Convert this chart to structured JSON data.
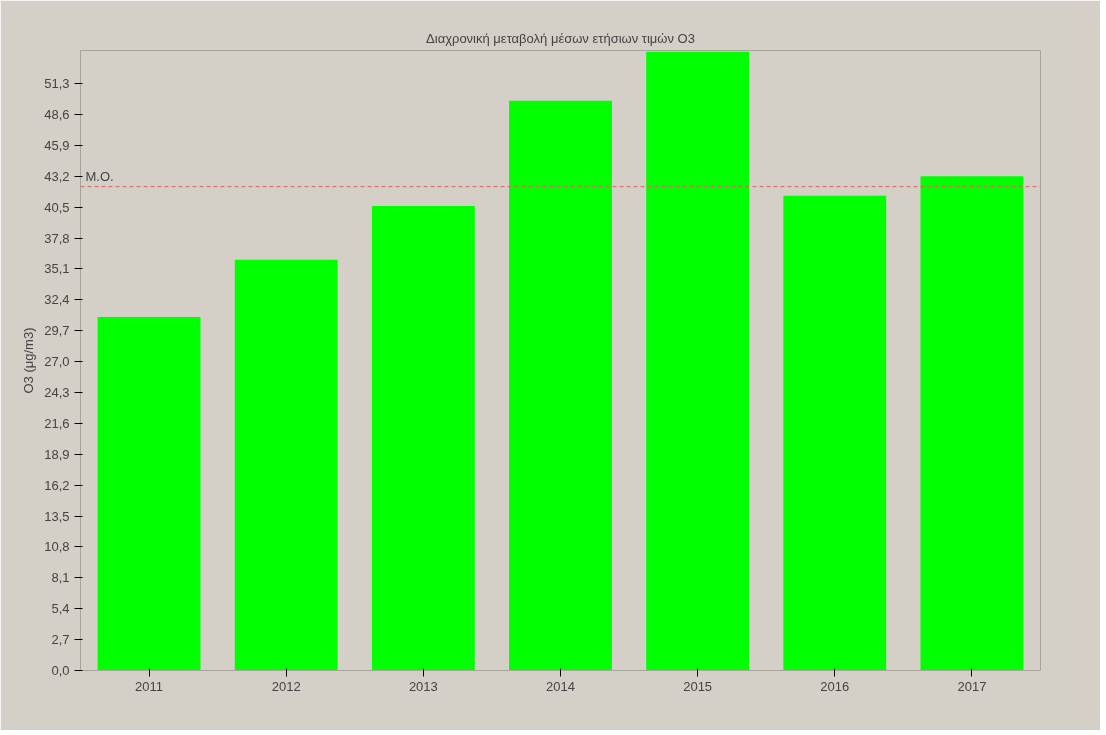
{
  "chart_data": {
    "type": "bar",
    "title": "Διαχρονική μεταβολή μέσων ετήσιων τιμών O3",
    "ylabel": "O3 (μg/m3)",
    "categories": [
      "2011",
      "2012",
      "2013",
      "2014",
      "2015",
      "2016",
      "2017"
    ],
    "values": [
      30.9,
      35.9,
      40.6,
      49.8,
      54.1,
      41.5,
      43.2
    ],
    "color": "#00ff00",
    "ylim": [
      0,
      54.2
    ],
    "yticks": [
      {
        "value": 0,
        "label": "0,0"
      },
      {
        "value": 2.7,
        "label": "2,7"
      },
      {
        "value": 5.4,
        "label": "5,4"
      },
      {
        "value": 8.1,
        "label": "8,1"
      },
      {
        "value": 10.8,
        "label": "10,8"
      },
      {
        "value": 13.5,
        "label": "13,5"
      },
      {
        "value": 16.2,
        "label": "16,2"
      },
      {
        "value": 18.9,
        "label": "18,9"
      },
      {
        "value": 21.6,
        "label": "21,6"
      },
      {
        "value": 24.3,
        "label": "24,3"
      },
      {
        "value": 27.0,
        "label": "27,0"
      },
      {
        "value": 29.7,
        "label": "29,7"
      },
      {
        "value": 32.4,
        "label": "32,4"
      },
      {
        "value": 35.1,
        "label": "35,1"
      },
      {
        "value": 37.8,
        "label": "37,8"
      },
      {
        "value": 40.5,
        "label": "40,5"
      },
      {
        "value": 43.2,
        "label": "43,2"
      },
      {
        "value": 45.9,
        "label": "45,9"
      },
      {
        "value": 48.6,
        "label": "48,6"
      },
      {
        "value": 51.3,
        "label": "51,3"
      }
    ],
    "ref_lines": [
      {
        "axis": "y",
        "value": 42.3,
        "label": "M.O.",
        "color": "#e06060",
        "line_style": "dashed"
      }
    ],
    "grid": false
  }
}
